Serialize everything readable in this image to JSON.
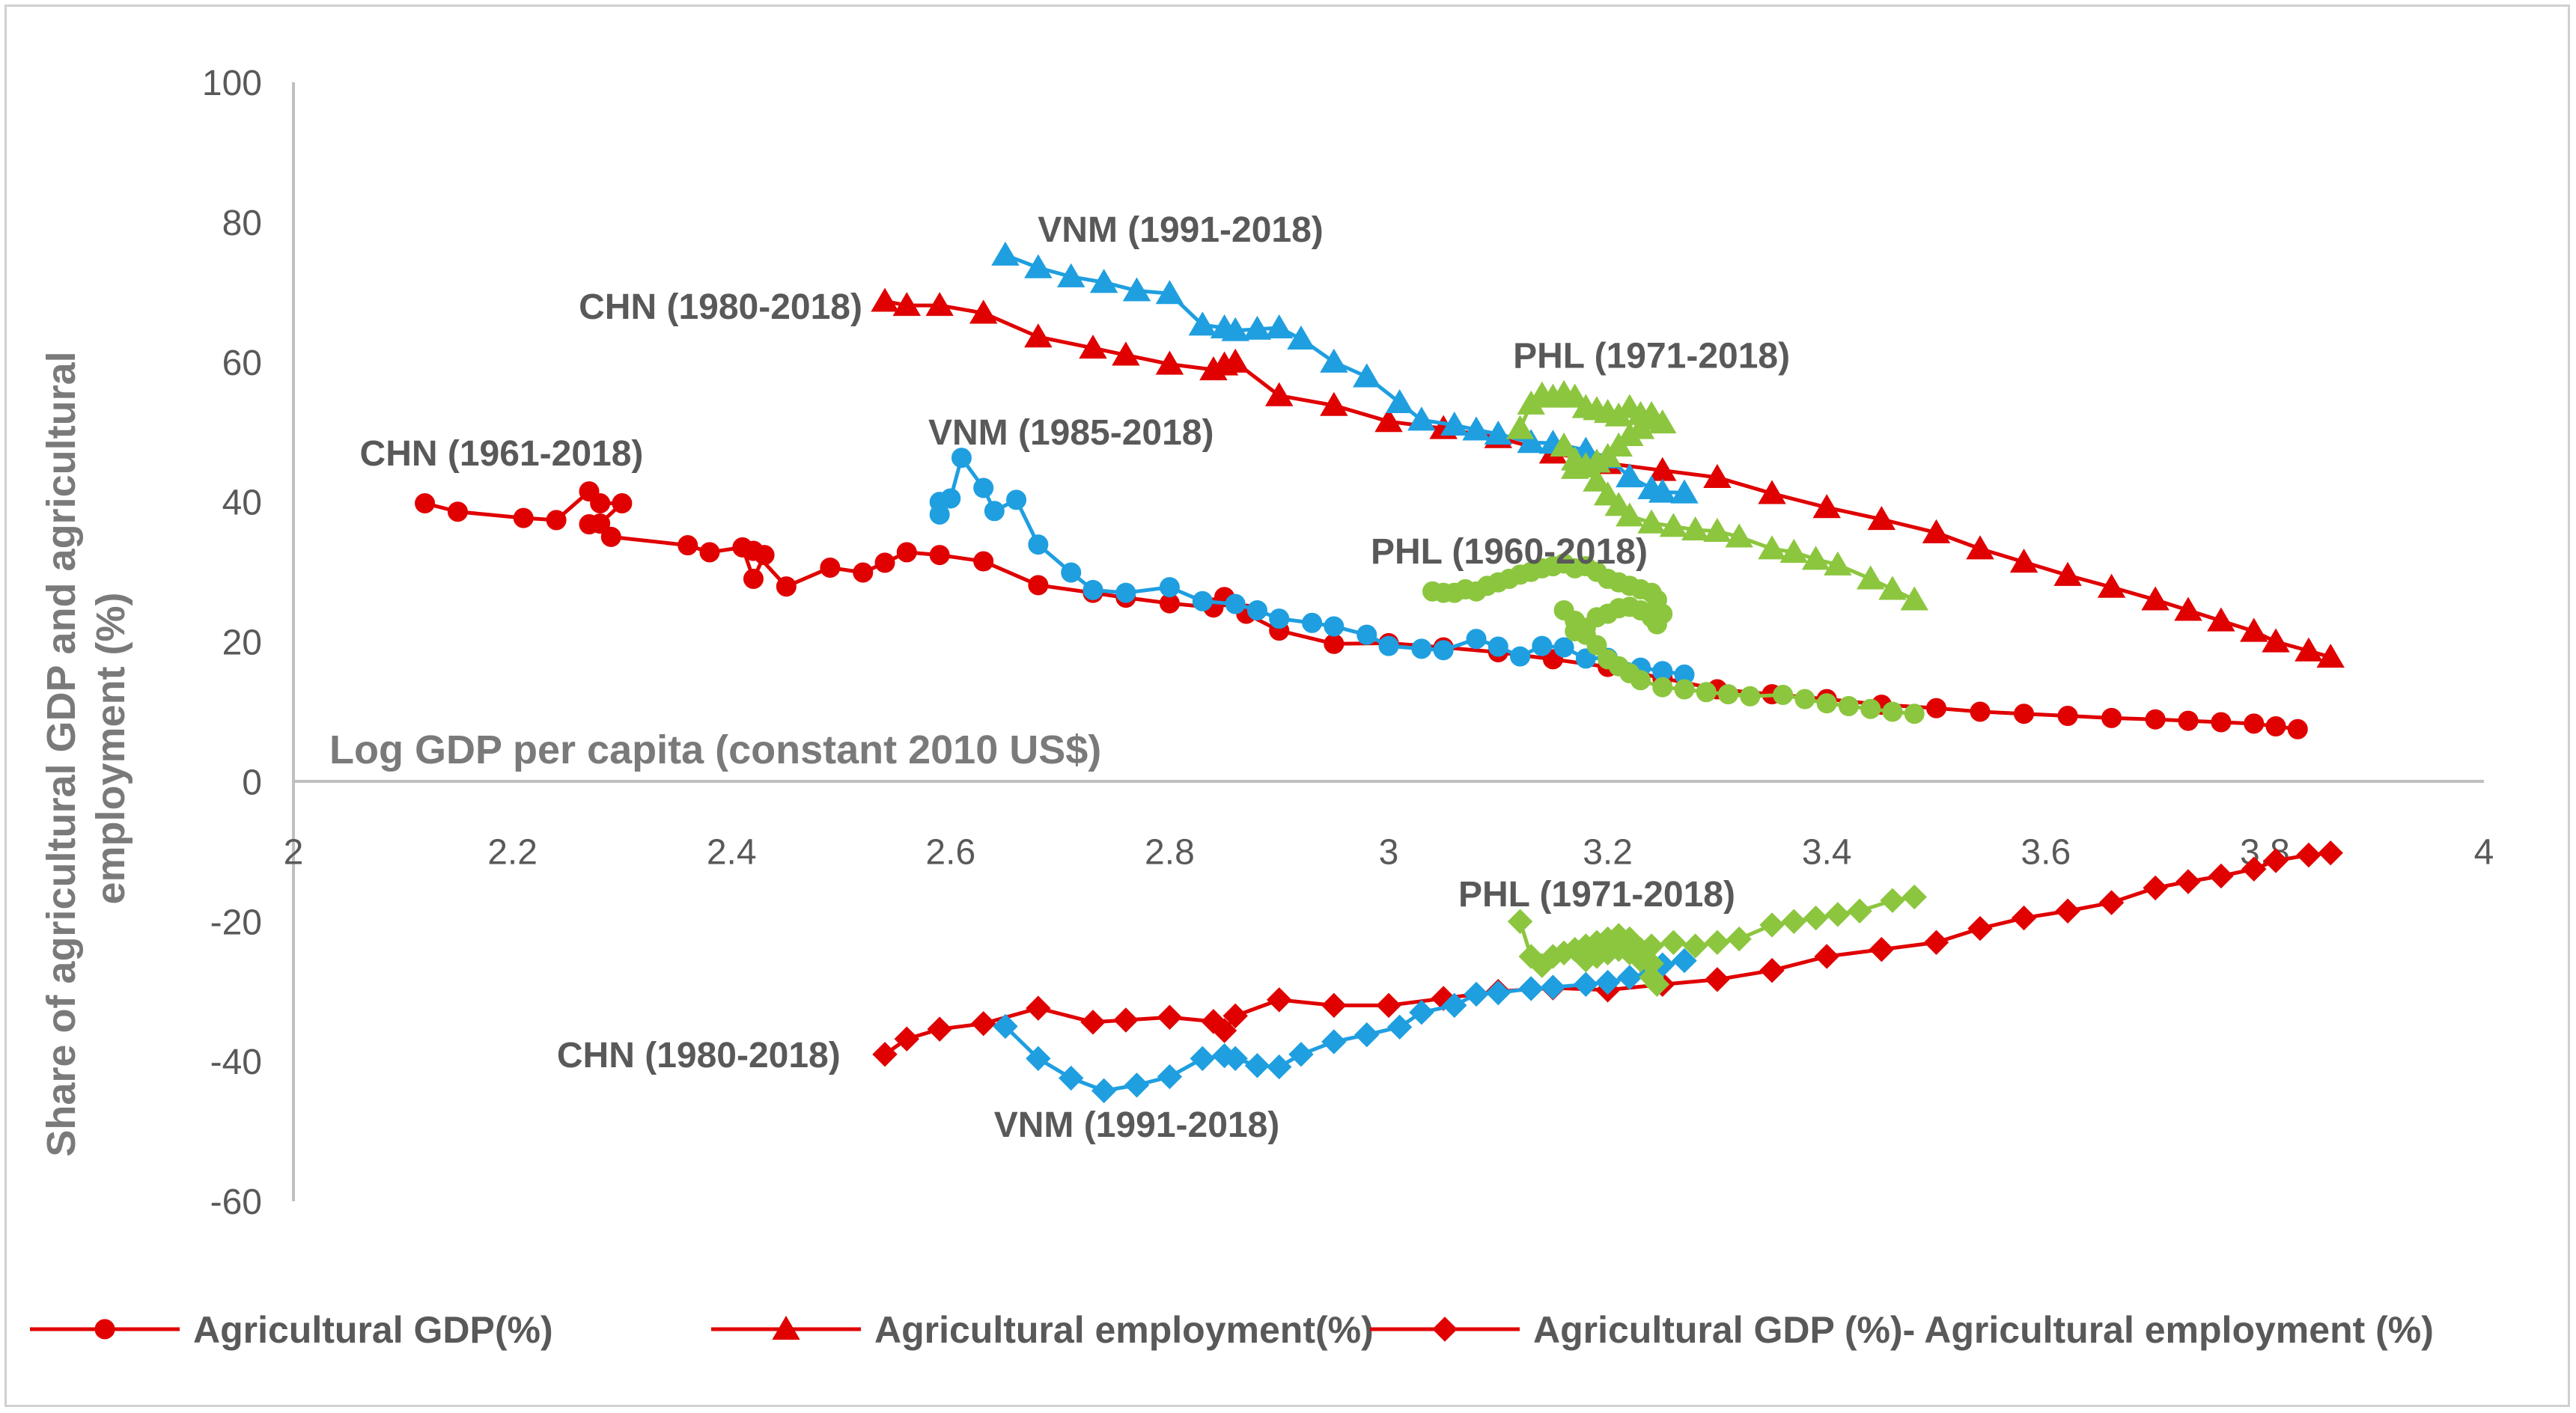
{
  "chart_data": {
    "type": "scatter",
    "title": "",
    "xlabel": "Log GDP per capita (constant 2010 US$)",
    "ylabel": "Share of agricultural GDP and agricultural employment (%)",
    "xlim": [
      2,
      4
    ],
    "ylim": [
      -60,
      100
    ],
    "x_ticks": [
      2,
      2.2,
      2.4,
      2.6,
      2.8,
      3,
      3.2,
      3.4,
      3.6,
      3.8,
      4
    ],
    "x_tick_labels": [
      "2",
      "2.2",
      "2.4",
      "2.6",
      "2.8",
      "3",
      "3.2",
      "3.4",
      "3.6",
      "3.8",
      "4"
    ],
    "y_ticks": [
      -60,
      -40,
      -20,
      0,
      20,
      40,
      60,
      80,
      100
    ],
    "y_tick_labels": [
      "-60",
      "-40",
      "-20",
      "0",
      "20",
      "40",
      "60",
      "80",
      "100"
    ],
    "grid": false,
    "legend_position": "bottom",
    "legend": [
      {
        "label": "Agricultural GDP(%)",
        "marker": "circle",
        "color": "#e00000"
      },
      {
        "label": "Agricultural employment(%)",
        "marker": "triangle",
        "color": "#e00000"
      },
      {
        "label": "Agricultural GDP (%)- Agricultural employment (%)",
        "marker": "diamond",
        "color": "#e00000"
      }
    ],
    "annotations": [
      {
        "id": "ann-chn-1961",
        "text": "CHN (1961-2018)",
        "x": 2.19,
        "y": 47
      },
      {
        "id": "ann-vnm-1985",
        "text": "VNM (1985-2018)",
        "x": 2.71,
        "y": 50
      },
      {
        "id": "ann-chn-1980-emp",
        "text": "CHN (1980-2018)",
        "x": 2.39,
        "y": 68
      },
      {
        "id": "ann-vnm-1991-emp",
        "text": "VNM (1991-2018)",
        "x": 2.81,
        "y": 79
      },
      {
        "id": "ann-phl-1971-emp",
        "text": "PHL (1971-2018)",
        "x": 3.24,
        "y": 61
      },
      {
        "id": "ann-phl-1960",
        "text": "PHL (1960-2018)",
        "x": 3.11,
        "y": 33
      },
      {
        "id": "ann-phl-1971-diff",
        "text": "PHL (1971-2018)",
        "x": 3.19,
        "y": -16
      },
      {
        "id": "ann-chn-1980-diff",
        "text": "CHN (1980-2018)",
        "x": 2.37,
        "y": -39
      },
      {
        "id": "ann-vnm-1991-diff",
        "text": "VNM (1991-2018)",
        "x": 2.77,
        "y": -49
      }
    ],
    "series": [
      {
        "name": "CHN Agricultural GDP (1961-2018)",
        "country": "CHN",
        "measure": "Agricultural GDP(%)",
        "marker": "circle",
        "color": "#e00000",
        "x": [
          2.12,
          2.15,
          2.21,
          2.24,
          2.27,
          2.28,
          2.3,
          2.28,
          2.27,
          2.29,
          2.36,
          2.38,
          2.41,
          2.42,
          2.43,
          2.42,
          2.45,
          2.49,
          2.52,
          2.54,
          2.56,
          2.59,
          2.63,
          2.68,
          2.73,
          2.76,
          2.8,
          2.84,
          2.85,
          2.87,
          2.9,
          2.95,
          3.0,
          3.05,
          3.1,
          3.15,
          3.2,
          3.25,
          3.3,
          3.35,
          3.4,
          3.45,
          3.5,
          3.54,
          3.58,
          3.62,
          3.66,
          3.7,
          3.73,
          3.76,
          3.79,
          3.81,
          3.83
        ],
        "y": [
          39.8,
          38.6,
          37.7,
          37.4,
          41.5,
          39.8,
          39.8,
          36.9,
          36.8,
          35.0,
          33.8,
          32.8,
          33.5,
          29.0,
          32.4,
          33.0,
          27.9,
          30.6,
          29.9,
          31.3,
          32.8,
          32.4,
          31.5,
          28.1,
          27.0,
          26.3,
          25.5,
          24.9,
          26.4,
          24.0,
          21.6,
          19.7,
          19.8,
          19.2,
          18.5,
          17.5,
          16.4,
          14.8,
          13.2,
          12.5,
          11.8,
          11.0,
          10.5,
          10.0,
          9.7,
          9.4,
          9.1,
          8.9,
          8.7,
          8.5,
          8.3,
          7.9,
          7.5
        ]
      },
      {
        "name": "CHN Agricultural employment (1980-2018)",
        "country": "CHN",
        "measure": "Agricultural employment(%)",
        "marker": "triangle",
        "color": "#e00000",
        "x": [
          2.54,
          2.56,
          2.59,
          2.63,
          2.68,
          2.73,
          2.76,
          2.8,
          2.84,
          2.85,
          2.86,
          2.9,
          2.95,
          3.0,
          3.05,
          3.1,
          3.15,
          3.2,
          3.25,
          3.3,
          3.35,
          3.4,
          3.45,
          3.5,
          3.54,
          3.58,
          3.62,
          3.66,
          3.7,
          3.73,
          3.76,
          3.79,
          3.81,
          3.84,
          3.86
        ],
        "y": [
          68.7,
          68.1,
          68.1,
          67.0,
          63.6,
          62.0,
          61.0,
          59.7,
          58.9,
          59.6,
          60.0,
          55.2,
          53.8,
          51.5,
          50.5,
          49.2,
          47.0,
          45.5,
          44.5,
          43.5,
          41.2,
          39.2,
          37.5,
          35.6,
          33.3,
          31.4,
          29.5,
          27.8,
          26.0,
          24.5,
          23.0,
          21.5,
          20.0,
          18.7,
          17.8
        ]
      },
      {
        "name": "CHN Agricultural GDP - employment (1980-2018)",
        "country": "CHN",
        "measure": "Agricultural GDP (%)- Agricultural employment (%)",
        "marker": "diamond",
        "color": "#e00000",
        "x": [
          2.54,
          2.56,
          2.59,
          2.63,
          2.68,
          2.73,
          2.76,
          2.8,
          2.84,
          2.85,
          2.86,
          2.9,
          2.95,
          3.0,
          3.05,
          3.1,
          3.15,
          3.2,
          3.25,
          3.3,
          3.35,
          3.4,
          3.45,
          3.5,
          3.54,
          3.58,
          3.62,
          3.66,
          3.7,
          3.73,
          3.76,
          3.79,
          3.81,
          3.84,
          3.86
        ],
        "y": [
          -39.0,
          -36.8,
          -35.4,
          -34.6,
          -32.4,
          -34.4,
          -34.1,
          -33.7,
          -34.3,
          -35.6,
          -33.5,
          -31.2,
          -32.0,
          -32.0,
          -31.0,
          -30.0,
          -29.5,
          -29.8,
          -29.0,
          -28.3,
          -27.0,
          -25.0,
          -24.0,
          -23.0,
          -21.0,
          -19.5,
          -18.5,
          -17.3,
          -15.2,
          -14.3,
          -13.5,
          -12.5,
          -11.3,
          -10.5,
          -10.2
        ]
      },
      {
        "name": "VNM Agricultural GDP (1985-2018)",
        "country": "VNM",
        "measure": "Agricultural GDP(%)",
        "marker": "circle",
        "color": "#1f9fe0",
        "x": [
          2.59,
          2.59,
          2.6,
          2.61,
          2.63,
          2.64,
          2.66,
          2.68,
          2.71,
          2.73,
          2.76,
          2.8,
          2.83,
          2.86,
          2.88,
          2.9,
          2.93,
          2.95,
          2.98,
          3.0,
          3.03,
          3.05,
          3.08,
          3.1,
          3.12,
          3.14,
          3.16,
          3.18,
          3.2,
          3.23,
          3.25,
          3.27
        ],
        "y": [
          38.2,
          40.0,
          40.5,
          46.3,
          42.0,
          38.7,
          40.3,
          33.9,
          29.9,
          27.4,
          27.0,
          27.8,
          25.8,
          25.4,
          24.5,
          23.3,
          22.7,
          22.2,
          21.0,
          19.4,
          19.0,
          18.8,
          20.4,
          19.3,
          17.9,
          19.4,
          19.2,
          17.6,
          17.7,
          16.3,
          15.8,
          15.3
        ]
      },
      {
        "name": "VNM Agricultural employment (1991-2018)",
        "country": "VNM",
        "measure": "Agricultural employment(%)",
        "marker": "triangle",
        "color": "#1f9fe0",
        "x": [
          2.65,
          2.68,
          2.71,
          2.74,
          2.77,
          2.8,
          2.83,
          2.85,
          2.86,
          2.88,
          2.9,
          2.92,
          2.95,
          2.98,
          3.01,
          3.03,
          3.06,
          3.08,
          3.1,
          3.13,
          3.15,
          3.18,
          3.2,
          3.22,
          3.24,
          3.25,
          3.27
        ],
        "y": [
          75.3,
          73.5,
          72.2,
          71.4,
          70.2,
          69.8,
          65.3,
          64.9,
          64.5,
          64.7,
          64.9,
          63.3,
          60.0,
          57.9,
          54.2,
          51.7,
          51.0,
          50.3,
          49.7,
          48.5,
          48.4,
          47.4,
          46.3,
          43.6,
          41.9,
          41.4,
          41.3
        ]
      },
      {
        "name": "VNM Agricultural GDP - employment (1991-2018)",
        "country": "VNM",
        "measure": "Agricultural GDP (%)- Agricultural employment (%)",
        "marker": "diamond",
        "color": "#1f9fe0",
        "x": [
          2.65,
          2.68,
          2.71,
          2.74,
          2.77,
          2.8,
          2.83,
          2.85,
          2.86,
          2.88,
          2.9,
          2.92,
          2.95,
          2.98,
          3.01,
          3.03,
          3.06,
          3.08,
          3.1,
          3.13,
          3.15,
          3.18,
          3.2,
          3.22,
          3.24,
          3.25,
          3.27
        ],
        "y": [
          -35.0,
          -39.6,
          -42.4,
          -44.2,
          -43.4,
          -42.2,
          -39.6,
          -39.2,
          -39.6,
          -40.6,
          -40.8,
          -39.0,
          -37.2,
          -36.2,
          -35.1,
          -33.0,
          -32.0,
          -30.4,
          -30.2,
          -29.6,
          -29.4,
          -29.0,
          -28.7,
          -28.0,
          -27.2,
          -26.2,
          -25.6
        ]
      },
      {
        "name": "PHL Agricultural GDP (1960-2018)",
        "country": "PHL",
        "measure": "Agricultural GDP(%)",
        "marker": "circle",
        "color": "#8cc63f",
        "x": [
          3.04,
          3.05,
          3.06,
          3.07,
          3.08,
          3.09,
          3.1,
          3.11,
          3.12,
          3.13,
          3.14,
          3.15,
          3.16,
          3.17,
          3.18,
          3.19,
          3.2,
          3.21,
          3.22,
          3.23,
          3.24,
          3.245,
          3.25,
          3.245,
          3.24,
          3.23,
          3.22,
          3.21,
          3.2,
          3.19,
          3.18,
          3.17,
          3.16,
          3.17,
          3.18,
          3.19,
          3.2,
          3.21,
          3.22,
          3.23,
          3.25,
          3.27,
          3.29,
          3.31,
          3.33,
          3.36,
          3.38,
          3.4,
          3.42,
          3.44,
          3.46,
          3.48
        ],
        "y": [
          27.2,
          27.0,
          27.0,
          27.5,
          27.2,
          28.0,
          28.5,
          29.0,
          29.6,
          30.0,
          30.5,
          30.8,
          31.2,
          30.5,
          30.8,
          30.0,
          29.0,
          28.5,
          28.0,
          27.5,
          27.0,
          26.0,
          24.0,
          22.5,
          23.5,
          24.5,
          25.0,
          24.8,
          24.0,
          23.5,
          22.0,
          21.5,
          24.5,
          23.0,
          21.0,
          19.5,
          17.5,
          16.5,
          15.5,
          14.5,
          13.5,
          13.2,
          12.8,
          12.5,
          12.2,
          12.4,
          11.8,
          11.2,
          10.8,
          10.4,
          10.0,
          9.7
        ]
      },
      {
        "name": "PHL Agricultural employment (1971-2018)",
        "country": "PHL",
        "measure": "Agricultural employment(%)",
        "marker": "triangle",
        "color": "#8cc63f",
        "x": [
          3.12,
          3.13,
          3.14,
          3.15,
          3.16,
          3.17,
          3.18,
          3.19,
          3.2,
          3.21,
          3.22,
          3.23,
          3.24,
          3.25,
          3.24,
          3.23,
          3.22,
          3.21,
          3.2,
          3.19,
          3.18,
          3.17,
          3.16,
          3.17,
          3.18,
          3.19,
          3.2,
          3.21,
          3.22,
          3.24,
          3.26,
          3.28,
          3.3,
          3.32,
          3.35,
          3.37,
          3.39,
          3.41,
          3.44,
          3.46,
          3.48
        ],
        "y": [
          50.5,
          54.0,
          55.3,
          55.0,
          55.5,
          55.0,
          53.5,
          53.2,
          52.8,
          52.3,
          53.5,
          52.5,
          51.8,
          51.3,
          52.5,
          50.5,
          49.5,
          48.0,
          46.5,
          45.7,
          45.2,
          44.8,
          48.0,
          46.0,
          45.0,
          43.0,
          41.0,
          39.5,
          38.0,
          37.0,
          36.5,
          36.0,
          35.8,
          35.0,
          33.3,
          32.8,
          31.8,
          31.0,
          29.0,
          27.5,
          26.0
        ]
      },
      {
        "name": "PHL Agricultural GDP - employment (1971-2018)",
        "country": "PHL",
        "measure": "Agricultural GDP (%)- Agricultural employment (%)",
        "marker": "diamond",
        "color": "#8cc63f",
        "x": [
          3.12,
          3.13,
          3.14,
          3.15,
          3.16,
          3.17,
          3.18,
          3.19,
          3.2,
          3.21,
          3.22,
          3.23,
          3.24,
          3.245,
          3.24,
          3.23,
          3.22,
          3.21,
          3.2,
          3.19,
          3.18,
          3.19,
          3.2,
          3.21,
          3.22,
          3.24,
          3.26,
          3.28,
          3.3,
          3.32,
          3.35,
          3.37,
          3.39,
          3.41,
          3.43,
          3.46,
          3.48
        ],
        "y": [
          -20.0,
          -25.0,
          -26.3,
          -25.0,
          -24.5,
          -24.0,
          -23.5,
          -23.0,
          -22.5,
          -22.0,
          -22.5,
          -24.0,
          -26.0,
          -29.0,
          -28.0,
          -25.5,
          -24.5,
          -24.0,
          -24.5,
          -24.0,
          -25.5,
          -25.0,
          -23.5,
          -23.0,
          -22.5,
          -23.5,
          -23.0,
          -23.5,
          -23.0,
          -22.5,
          -20.5,
          -20.0,
          -19.5,
          -19.0,
          -18.5,
          -17.0,
          -16.5
        ]
      }
    ]
  }
}
